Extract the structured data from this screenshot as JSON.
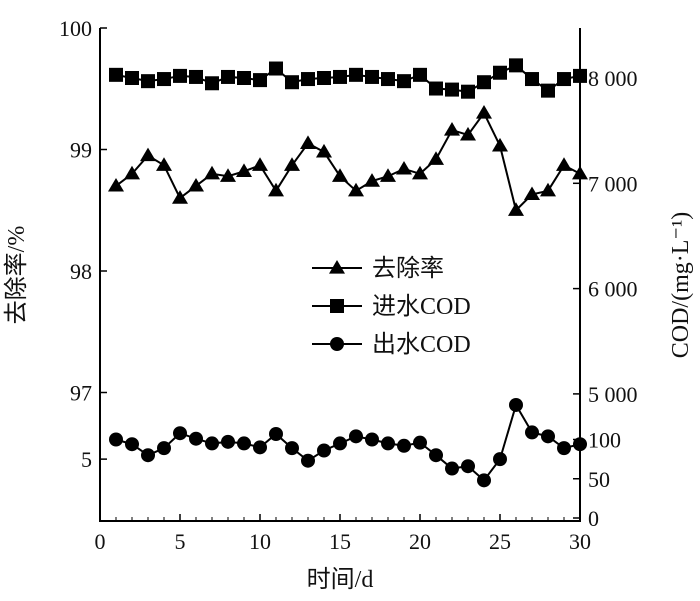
{
  "chart_data": [
    {
      "type": "line",
      "title": "",
      "xlabel": "时间/d",
      "ylabel": "去除率/%",
      "xlim": [
        0,
        30
      ],
      "ylim": [
        96.4,
        100
      ],
      "x_ticks": [
        "0",
        "5",
        "10",
        "15",
        "20",
        "25",
        "30"
      ],
      "y_ticks": [
        "97",
        "98",
        "99",
        "100"
      ],
      "y_axis": "left",
      "y_axis_break": true,
      "series": [
        {
          "name": "去除率",
          "marker": "triangle",
          "x": [
            1,
            2,
            3,
            4,
            5,
            6,
            7,
            8,
            9,
            10,
            11,
            12,
            13,
            14,
            15,
            16,
            17,
            18,
            19,
            20,
            21,
            22,
            23,
            24,
            25,
            26,
            27,
            28,
            29,
            30
          ],
          "values": [
            98.7,
            98.8,
            98.95,
            98.87,
            98.6,
            98.7,
            98.8,
            98.78,
            98.82,
            98.87,
            98.66,
            98.87,
            99.05,
            98.98,
            98.78,
            98.66,
            98.74,
            98.78,
            98.84,
            98.8,
            98.92,
            99.16,
            99.12,
            99.3,
            99.03,
            98.5,
            98.63,
            98.66,
            98.87,
            98.8
          ]
        }
      ]
    },
    {
      "type": "line",
      "title": "",
      "xlabel": "时间/d",
      "ylabel": "COD/(mg·L⁻¹)",
      "xlim": [
        0,
        30
      ],
      "ylim": [
        0,
        8500
      ],
      "y_ticks": [
        "0",
        "50",
        "100",
        "5 000",
        "6 000",
        "7 000",
        "8 000"
      ],
      "y_axis": "right",
      "y_axis_break": true,
      "left_axis_lower_tick": "5",
      "series": [
        {
          "name": "进水COD",
          "marker": "square",
          "x": [
            1,
            2,
            3,
            4,
            5,
            6,
            7,
            8,
            9,
            10,
            11,
            12,
            13,
            14,
            15,
            16,
            17,
            18,
            19,
            20,
            21,
            22,
            23,
            24,
            25,
            26,
            27,
            28,
            29,
            30
          ],
          "values": [
            8030,
            8000,
            7970,
            7990,
            8020,
            8010,
            7950,
            8010,
            8000,
            7980,
            8090,
            7960,
            7990,
            8000,
            8010,
            8030,
            8010,
            7990,
            7970,
            8030,
            7900,
            7890,
            7870,
            7960,
            8050,
            8120,
            7990,
            7880,
            7990,
            8020
          ]
        },
        {
          "name": "出水COD",
          "marker": "circle",
          "x": [
            1,
            2,
            3,
            4,
            5,
            6,
            7,
            8,
            9,
            10,
            11,
            12,
            13,
            14,
            15,
            16,
            17,
            18,
            19,
            20,
            21,
            22,
            23,
            24,
            25,
            26,
            27,
            28,
            29,
            30
          ],
          "values": [
            100,
            94,
            80,
            89,
            108,
            101,
            95,
            97,
            95,
            90,
            107,
            89,
            73,
            86,
            95,
            104,
            100,
            95,
            92,
            96,
            80,
            63,
            66,
            48,
            75,
            144,
            109,
            104,
            89,
            94
          ]
        }
      ]
    }
  ],
  "legend": {
    "position": "center",
    "entries": [
      {
        "label": "去除率",
        "marker": "triangle"
      },
      {
        "label": "进水COD",
        "marker": "square"
      },
      {
        "label": "出水COD",
        "marker": "circle"
      }
    ]
  }
}
